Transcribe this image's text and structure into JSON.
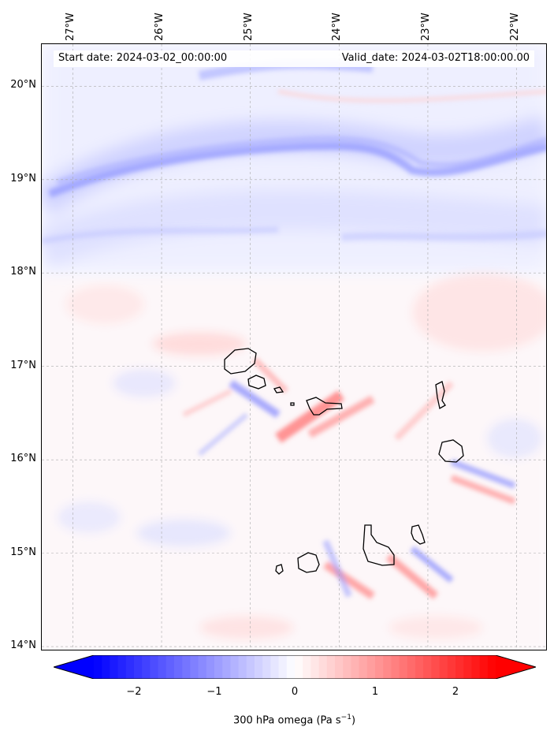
{
  "map": {
    "info": {
      "start_date": "Start date: 2024-03-02_00:00:00",
      "valid_date": "Valid_date: 2024-03-02T18:00:00.00"
    },
    "lon_labels": [
      "27°W",
      "26°W",
      "25°W",
      "24°W",
      "23°W",
      "22°W"
    ],
    "lat_labels": [
      "20°N",
      "19°N",
      "18°N",
      "17°N",
      "16°N",
      "15°N",
      "14°N"
    ],
    "lon_values": [
      -27,
      -26,
      -25,
      -24,
      -23,
      -22
    ],
    "lat_values": [
      20,
      19,
      18,
      17,
      16,
      15,
      14
    ],
    "extent": {
      "lon_min": -27.35,
      "lon_max": -21.65,
      "lat_min": 13.95,
      "lat_max": 20.45
    },
    "gridlines": true,
    "colorbar": {
      "label_text": "300 hPa omega (Pa s",
      "label_unit_sup": "−1",
      "label_close": ")",
      "ticks": [
        "−2",
        "−1",
        "0",
        "1",
        "2"
      ],
      "tick_values": [
        -2,
        -1,
        0,
        1,
        2
      ],
      "range": [
        -2.5,
        2.5
      ],
      "extend": "both",
      "colormap": "bwr",
      "colors": {
        "negative": "#0000ff",
        "zero": "#ffffff",
        "positive": "#ff0000"
      }
    },
    "islands": [
      "Santo Antão",
      "São Vicente",
      "Santa Luzia",
      "São Nicolau",
      "Sal",
      "Boa Vista",
      "Santiago",
      "Fogo",
      "Brava",
      "Maio"
    ]
  }
}
